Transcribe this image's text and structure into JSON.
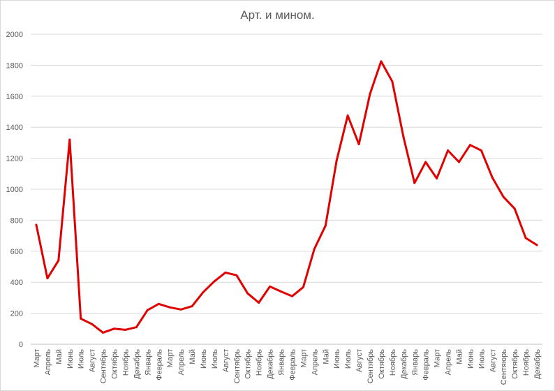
{
  "chart_data": {
    "type": "line",
    "title": "Арт. и мином.",
    "xlabel": "",
    "ylabel": "",
    "ylim": [
      0,
      2000
    ],
    "yticks": [
      0,
      200,
      400,
      600,
      800,
      1000,
      1200,
      1400,
      1600,
      1800,
      2000
    ],
    "grid": true,
    "legend": "none",
    "line_color": "#e00000",
    "categories": [
      "Март",
      "Апрель",
      "Май",
      "Июнь",
      "Июль",
      "Август",
      "Сентябрь",
      "Октябрь",
      "Ноябрь",
      "Декабрь",
      "Январь",
      "Февраль",
      "Март",
      "Апрель",
      "Май",
      "Июнь",
      "Июль",
      "Август",
      "Сентябрь",
      "Октябрь",
      "Ноябрь",
      "Декабрь",
      "Январь",
      "Февраль",
      "Март",
      "Апрель",
      "Май",
      "Июнь",
      "Июль",
      "Август",
      "Сентябрь",
      "Октябрь",
      "Ноябрь",
      "Декабрь",
      "Январь",
      "Февраль",
      "Март",
      "Апрель",
      "Май",
      "Июнь",
      "Июль",
      "Август",
      "Сентяюрь",
      "Октябрь",
      "Ноябрь",
      "Декабрь"
    ],
    "series": [
      {
        "values": [
          770,
          425,
          540,
          1320,
          165,
          130,
          75,
          100,
          93,
          110,
          220,
          260,
          238,
          224,
          245,
          335,
          405,
          462,
          445,
          328,
          268,
          372,
          340,
          310,
          368,
          615,
          765,
          1185,
          1475,
          1290,
          1615,
          1825,
          1695,
          1340,
          1040,
          1175,
          1070,
          1250,
          1175,
          1285,
          1250,
          1075,
          950,
          875,
          685,
          640
        ]
      }
    ]
  }
}
